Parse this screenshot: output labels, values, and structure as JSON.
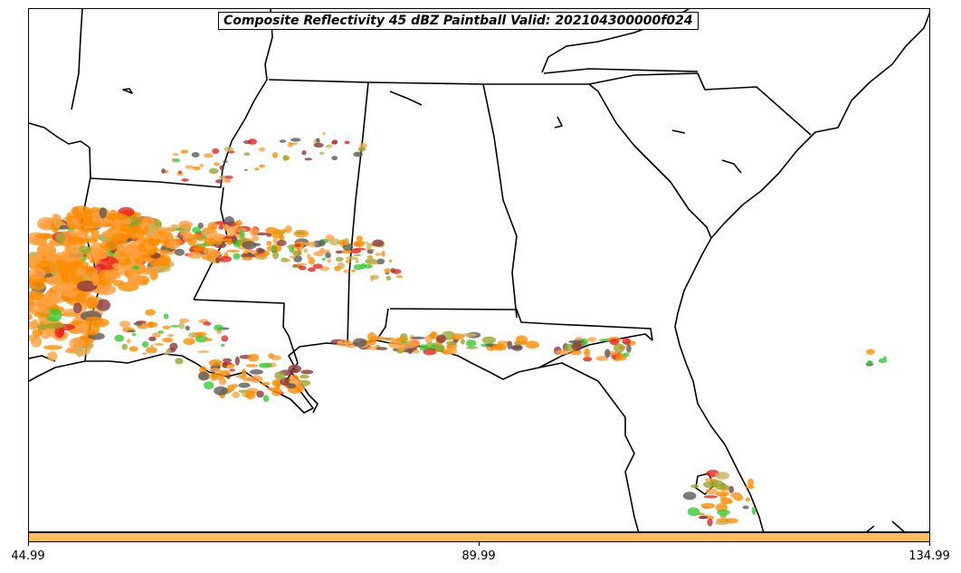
{
  "map": {
    "title": "Composite Reflectivity 45 dBZ Paintball Valid: 202104300000f024",
    "region": "Southeastern United States",
    "background_color": "#ffffff",
    "boundary_color": "#000000",
    "paintball_colors": [
      "#ff8c00",
      "#e8231f",
      "#ffa040",
      "#9aa52a",
      "#8b3a3a",
      "#5b5b5b",
      "#33cc33",
      "#c8b45a"
    ]
  },
  "colorbar": {
    "color": "#ffbe5a",
    "tick_labels": [
      "44.99",
      "89.99",
      "134.99"
    ]
  }
}
